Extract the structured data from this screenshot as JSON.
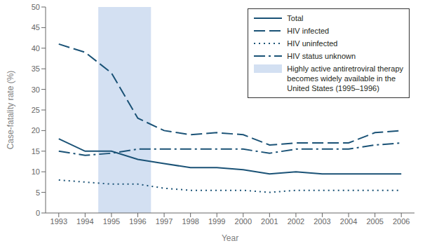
{
  "chart_data": {
    "type": "line",
    "xlabel": "Year",
    "ylabel": "Case-fatality rate (%)",
    "x": [
      1993,
      1994,
      1995,
      1996,
      1997,
      1998,
      1999,
      2000,
      2001,
      2002,
      2003,
      2004,
      2005,
      2006
    ],
    "xlim": [
      1992.5,
      2006.5
    ],
    "xticks": [
      1993,
      1994,
      1995,
      1996,
      1997,
      1998,
      1999,
      2000,
      2001,
      2002,
      2003,
      2004,
      2005,
      2006
    ],
    "ylim": [
      0,
      50
    ],
    "yticks": [
      0,
      5,
      10,
      15,
      20,
      25,
      30,
      35,
      40,
      45,
      50
    ],
    "grid": false,
    "legend": "upper right",
    "series": [
      {
        "name": "Total",
        "color": "#1a5276",
        "line_style": "solid",
        "values": [
          18,
          15,
          15,
          13,
          12,
          11,
          11,
          10.5,
          9.5,
          10,
          9.5,
          9.5,
          9.5,
          9.5
        ]
      },
      {
        "name": "HIV infected",
        "color": "#1a5276",
        "line_style": "dashed",
        "values": [
          41,
          39,
          34,
          23,
          20,
          19,
          19.5,
          19,
          16.5,
          17,
          17,
          17,
          19.5,
          20
        ]
      },
      {
        "name": "HIV uninfected",
        "color": "#1a5276",
        "line_style": "dotted",
        "values": [
          8,
          7.5,
          7,
          7,
          6,
          5.5,
          5.5,
          5.5,
          5,
          5.5,
          5.5,
          5.5,
          5.5,
          5.5
        ]
      },
      {
        "name": "HIV status unknown",
        "color": "#1a5276",
        "line_style": "dashdot",
        "values": [
          15,
          14,
          14.5,
          15.5,
          15.5,
          15.5,
          15.5,
          15.5,
          14.5,
          15.5,
          15.5,
          15.5,
          16.5,
          17
        ]
      }
    ],
    "shaded_region": {
      "xmin": 1994.5,
      "xmax": 1996.5,
      "color": "#aec6e8",
      "label": "Highly active antiretroviral therapy\nbecomes widely available in the\nUnited States (1995–1996)"
    }
  }
}
